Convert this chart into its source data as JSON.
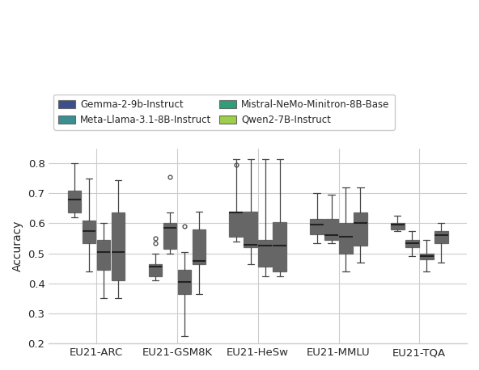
{
  "title": "",
  "ylabel": "Accuracy",
  "ylim": [
    0.2,
    0.85
  ],
  "yticks": [
    0.2,
    0.3,
    0.4,
    0.5,
    0.6,
    0.7,
    0.8
  ],
  "benchmarks": [
    "EU21-ARC",
    "EU21-GSM8K",
    "EU21-HeSw",
    "EU21-MMLU",
    "EU21-TQA"
  ],
  "models": [
    "Gemma-2-9b-Instruct",
    "Meta-Llama-3.1-8B-Instruct",
    "Mistral-NeMo-Minitron-8B-Base",
    "Qwen2-7B-Instruct"
  ],
  "colors": [
    "#3d4e8f",
    "#3a9090",
    "#2e9e78",
    "#9ecf4a"
  ],
  "box_data": {
    "EU21-ARC": {
      "Gemma-2-9b-Instruct": {
        "q1": 0.635,
        "median": 0.68,
        "q3": 0.71,
        "whislo": 0.62,
        "whishi": 0.8,
        "fliers": []
      },
      "Meta-Llama-3.1-8B-Instruct": {
        "q1": 0.535,
        "median": 0.575,
        "q3": 0.61,
        "whislo": 0.44,
        "whishi": 0.75,
        "fliers": []
      },
      "Mistral-NeMo-Minitron-8B-Base": {
        "q1": 0.445,
        "median": 0.505,
        "q3": 0.545,
        "whislo": 0.35,
        "whishi": 0.6,
        "fliers": []
      },
      "Qwen2-7B-Instruct": {
        "q1": 0.41,
        "median": 0.505,
        "q3": 0.635,
        "whislo": 0.35,
        "whishi": 0.745,
        "fliers": []
      }
    },
    "EU21-GSM8K": {
      "Gemma-2-9b-Instruct": {
        "q1": 0.425,
        "median": 0.455,
        "q3": 0.465,
        "whislo": 0.41,
        "whishi": 0.5,
        "fliers": [
          0.535,
          0.55
        ]
      },
      "Meta-Llama-3.1-8B-Instruct": {
        "q1": 0.515,
        "median": 0.585,
        "q3": 0.6,
        "whislo": 0.5,
        "whishi": 0.635,
        "fliers": [
          0.755
        ]
      },
      "Mistral-NeMo-Minitron-8B-Base": {
        "q1": 0.365,
        "median": 0.405,
        "q3": 0.445,
        "whislo": 0.225,
        "whishi": 0.505,
        "fliers": [
          0.59
        ]
      },
      "Qwen2-7B-Instruct": {
        "q1": 0.465,
        "median": 0.475,
        "q3": 0.58,
        "whislo": 0.365,
        "whishi": 0.64,
        "fliers": []
      }
    },
    "EU21-HeSw": {
      "Gemma-2-9b-Instruct": {
        "q1": 0.555,
        "median": 0.635,
        "q3": 0.64,
        "whislo": 0.54,
        "whishi": 0.815,
        "fliers": [
          0.795
        ]
      },
      "Meta-Llama-3.1-8B-Instruct": {
        "q1": 0.52,
        "median": 0.53,
        "q3": 0.64,
        "whislo": 0.465,
        "whishi": 0.815,
        "fliers": []
      },
      "Mistral-NeMo-Minitron-8B-Base": {
        "q1": 0.455,
        "median": 0.525,
        "q3": 0.545,
        "whislo": 0.425,
        "whishi": 0.815,
        "fliers": []
      },
      "Qwen2-7B-Instruct": {
        "q1": 0.44,
        "median": 0.525,
        "q3": 0.605,
        "whislo": 0.425,
        "whishi": 0.815,
        "fliers": []
      }
    },
    "EU21-MMLU": {
      "Gemma-2-9b-Instruct": {
        "q1": 0.565,
        "median": 0.595,
        "q3": 0.615,
        "whislo": 0.535,
        "whishi": 0.7,
        "fliers": []
      },
      "Meta-Llama-3.1-8B-Instruct": {
        "q1": 0.545,
        "median": 0.56,
        "q3": 0.615,
        "whislo": 0.535,
        "whishi": 0.695,
        "fliers": []
      },
      "Mistral-NeMo-Minitron-8B-Base": {
        "q1": 0.5,
        "median": 0.555,
        "q3": 0.6,
        "whislo": 0.44,
        "whishi": 0.72,
        "fliers": []
      },
      "Qwen2-7B-Instruct": {
        "q1": 0.525,
        "median": 0.6,
        "q3": 0.635,
        "whislo": 0.47,
        "whishi": 0.72,
        "fliers": []
      }
    },
    "EU21-TQA": {
      "Gemma-2-9b-Instruct": {
        "q1": 0.58,
        "median": 0.595,
        "q3": 0.6,
        "whislo": 0.575,
        "whishi": 0.625,
        "fliers": []
      },
      "Meta-Llama-3.1-8B-Instruct": {
        "q1": 0.52,
        "median": 0.535,
        "q3": 0.545,
        "whislo": 0.49,
        "whishi": 0.575,
        "fliers": []
      },
      "Mistral-NeMo-Minitron-8B-Base": {
        "q1": 0.48,
        "median": 0.49,
        "q3": 0.5,
        "whislo": 0.44,
        "whishi": 0.545,
        "fliers": []
      },
      "Qwen2-7B-Instruct": {
        "q1": 0.535,
        "median": 0.56,
        "q3": 0.575,
        "whislo": 0.47,
        "whishi": 0.6,
        "fliers": []
      }
    }
  }
}
